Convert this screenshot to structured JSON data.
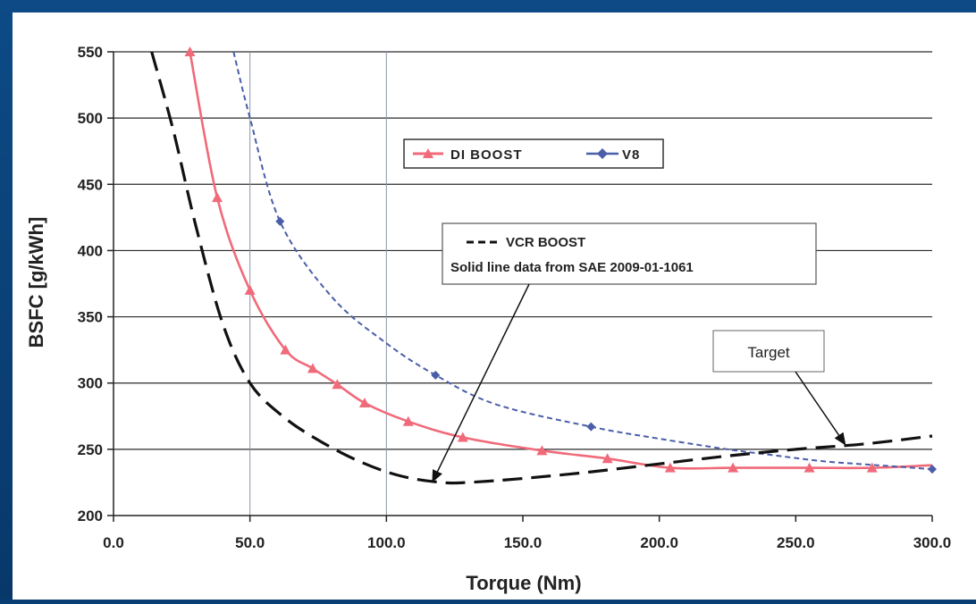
{
  "chart_data": {
    "type": "line",
    "xlabel": "Torque (Nm)",
    "ylabel": "BSFC [g/kWh]",
    "xlim": [
      0,
      300
    ],
    "ylim": [
      200,
      550
    ],
    "x_ticks": [
      "0.0",
      "50.0",
      "100.0",
      "150.0",
      "200.0",
      "250.0",
      "300.0"
    ],
    "y_ticks": [
      "200",
      "250",
      "300",
      "350",
      "400",
      "450",
      "500",
      "550"
    ],
    "horizontal_grid": true,
    "vertical_grid_at": [
      50,
      100
    ],
    "series": [
      {
        "name": "DI BOOST",
        "color": "#f06a7a",
        "style": "solid",
        "marker": "triangle",
        "x": [
          28,
          38,
          50,
          63,
          73,
          82,
          92,
          108,
          128,
          157,
          181,
          204,
          227,
          255,
          278,
          300
        ],
        "y": [
          550,
          440,
          370,
          325,
          311,
          299,
          285,
          271,
          259,
          249,
          243,
          236,
          236,
          236,
          236,
          238
        ],
        "markers_x": [
          28,
          38,
          50,
          63,
          73,
          82,
          92,
          108,
          128,
          157,
          181,
          204,
          227,
          255,
          278
        ],
        "markers_y": [
          550,
          440,
          370,
          325,
          311,
          299,
          285,
          271,
          259,
          249,
          243,
          236,
          236,
          236,
          236
        ]
      },
      {
        "name": "V8",
        "color": "#4a5ea8",
        "style": "dashed",
        "marker": "diamond",
        "x": [
          44,
          50,
          61,
          80,
          100,
          118,
          140,
          175,
          200,
          225,
          240,
          260,
          280,
          300
        ],
        "y": [
          550,
          500,
          422,
          365,
          330,
          306,
          284,
          267,
          258,
          250,
          246,
          241,
          238,
          235
        ],
        "markers_x": [
          61,
          118,
          175,
          300
        ],
        "markers_y": [
          422,
          306,
          267,
          235
        ]
      },
      {
        "name": "VCR BOOST",
        "color": "#111111",
        "style": "long-dash",
        "marker": "none",
        "x": [
          14,
          22,
          30,
          40,
          50,
          62,
          75,
          90,
          105,
          120,
          130,
          150,
          175,
          200,
          225,
          250,
          275,
          300
        ],
        "y": [
          550,
          490,
          420,
          345,
          300,
          275,
          257,
          241,
          230,
          225,
          225,
          228,
          233,
          239,
          245,
          250,
          254,
          260
        ]
      }
    ],
    "legend": {
      "placement": "upper-center",
      "entries": [
        "DI BOOST",
        "V8"
      ]
    },
    "annotations": [
      {
        "id": "vcr-note",
        "line1": "VCR BOOST",
        "line2": "Solid line data from SAE 2009-01-1061",
        "arrow_to": [
          117,
          226
        ]
      },
      {
        "id": "target-note",
        "text": "Target",
        "arrow_to": [
          268,
          254
        ]
      }
    ]
  }
}
